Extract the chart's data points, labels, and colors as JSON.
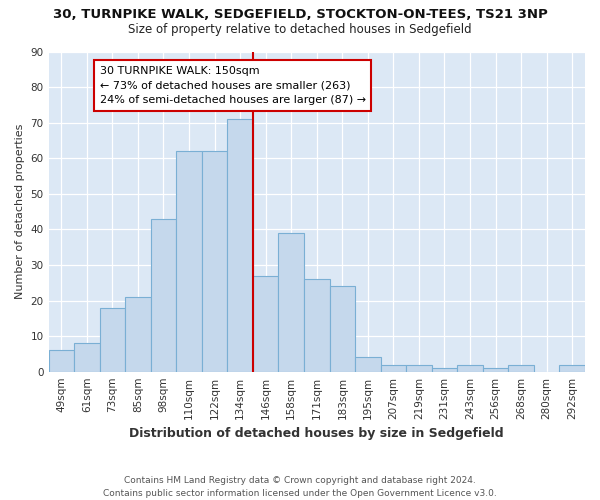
{
  "title1": "30, TURNPIKE WALK, SEDGEFIELD, STOCKTON-ON-TEES, TS21 3NP",
  "title2": "Size of property relative to detached houses in Sedgefield",
  "xlabel": "Distribution of detached houses by size in Sedgefield",
  "ylabel": "Number of detached properties",
  "categories": [
    "49sqm",
    "61sqm",
    "73sqm",
    "85sqm",
    "98sqm",
    "110sqm",
    "122sqm",
    "134sqm",
    "146sqm",
    "158sqm",
    "171sqm",
    "183sqm",
    "195sqm",
    "207sqm",
    "219sqm",
    "231sqm",
    "243sqm",
    "256sqm",
    "268sqm",
    "280sqm",
    "292sqm"
  ],
  "values": [
    6,
    8,
    18,
    21,
    43,
    62,
    62,
    71,
    27,
    39,
    26,
    24,
    4,
    2,
    2,
    1,
    2,
    1,
    2,
    0,
    2
  ],
  "bar_color": "#c5d8ec",
  "bar_edge_color": "#7aafd4",
  "vline_x": 7.5,
  "vline_color": "#cc0000",
  "annotation_text": "30 TURNPIKE WALK: 150sqm\n← 73% of detached houses are smaller (263)\n24% of semi-detached houses are larger (87) →",
  "annotation_box_color": "#ffffff",
  "annotation_box_edge": "#cc0000",
  "ylim": [
    0,
    90
  ],
  "yticks": [
    0,
    10,
    20,
    30,
    40,
    50,
    60,
    70,
    80,
    90
  ],
  "footer": "Contains HM Land Registry data © Crown copyright and database right 2024.\nContains public sector information licensed under the Open Government Licence v3.0.",
  "fig_bg_color": "#ffffff",
  "plot_bg_color": "#dce8f5",
  "grid_color": "#ffffff",
  "title1_fontsize": 9.5,
  "title2_fontsize": 8.5,
  "xlabel_fontsize": 9,
  "ylabel_fontsize": 8,
  "tick_fontsize": 7.5,
  "footer_fontsize": 6.5,
  "annot_fontsize": 8
}
